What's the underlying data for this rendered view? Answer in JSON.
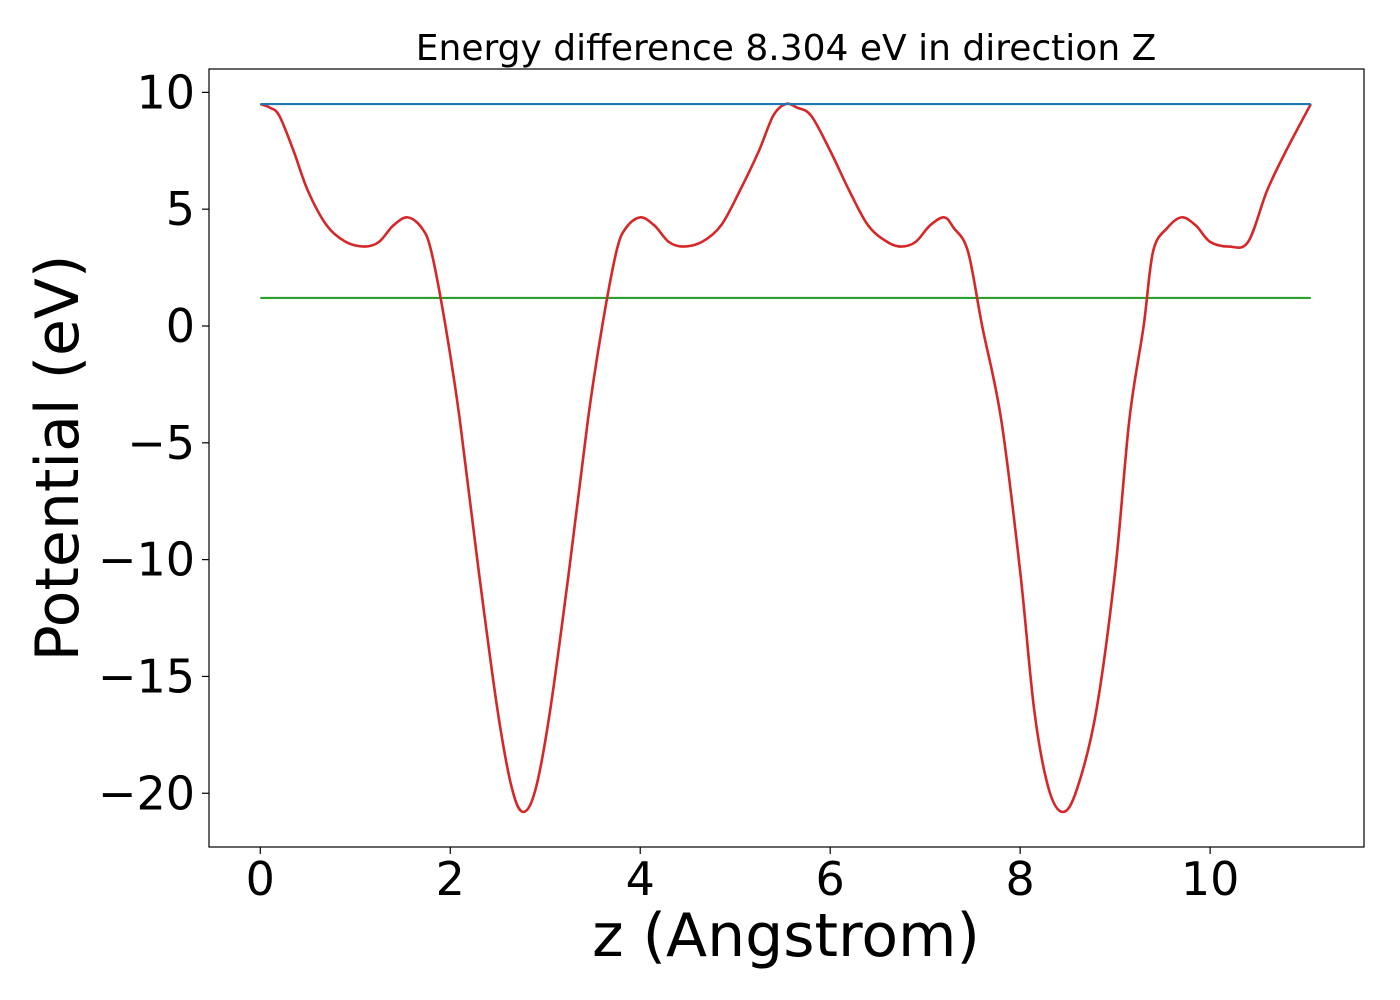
{
  "chart_data": {
    "type": "line",
    "title": "Energy difference 8.304 eV in direction Z",
    "xlabel": "z (Angstrom)",
    "ylabel": "Potential (eV)",
    "xlim": [
      -0.54,
      11.62
    ],
    "ylim": [
      -22.3,
      11.0
    ],
    "xticks": [
      0,
      2,
      4,
      6,
      8,
      10
    ],
    "xtick_labels": [
      "0",
      "2",
      "4",
      "6",
      "8",
      "10"
    ],
    "yticks": [
      10,
      5,
      0,
      -5,
      -10,
      -15,
      -20
    ],
    "ytick_labels": [
      "10",
      "5",
      "0",
      "−5",
      "−10",
      "−15",
      "−20"
    ],
    "grid": false,
    "legend": "none",
    "series": [
      {
        "color": "#d62728",
        "x": [
          0,
          0.1,
          0.2,
          0.35,
          0.5,
          0.7,
          0.9,
          1.1,
          1.25,
          1.4,
          1.55,
          1.7,
          1.8,
          1.95,
          2.1,
          2.3,
          2.5,
          2.65,
          2.77,
          2.9,
          3.05,
          3.25,
          3.45,
          3.6,
          3.75,
          3.85,
          4.0,
          4.15,
          4.3,
          4.45,
          4.65,
          4.85,
          5.05,
          5.25,
          5.4,
          5.53,
          5.65,
          5.8,
          6.0,
          6.2,
          6.4,
          6.6,
          6.75,
          6.9,
          7.05,
          7.2,
          7.3,
          7.45,
          7.6,
          7.8,
          8.0,
          8.15,
          8.3,
          8.45,
          8.6,
          8.8,
          9.0,
          9.15,
          9.3,
          9.4,
          9.55,
          9.7,
          9.85,
          10.0,
          10.2,
          10.4,
          10.6,
          10.8,
          11.06
        ],
        "values": [
          9.5,
          9.35,
          9.0,
          7.5,
          5.8,
          4.3,
          3.6,
          3.4,
          3.6,
          4.3,
          4.65,
          4.2,
          3.2,
          0.0,
          -4.0,
          -10.5,
          -16.5,
          -19.8,
          -20.8,
          -19.8,
          -16.5,
          -10.5,
          -4.0,
          0.0,
          3.2,
          4.2,
          4.65,
          4.3,
          3.6,
          3.4,
          3.6,
          4.3,
          5.8,
          7.5,
          9.0,
          9.5,
          9.35,
          9.0,
          7.5,
          5.8,
          4.3,
          3.6,
          3.4,
          3.6,
          4.3,
          4.65,
          4.2,
          3.2,
          0.0,
          -4.0,
          -10.5,
          -16.5,
          -19.8,
          -20.8,
          -19.8,
          -16.5,
          -10.5,
          -4.0,
          0.0,
          3.2,
          4.2,
          4.65,
          4.3,
          3.6,
          3.4,
          3.6,
          5.8,
          7.5,
          9.5
        ]
      },
      {
        "color": "#1f77b4",
        "x": [
          0,
          11.06
        ],
        "values": [
          9.5,
          9.5
        ]
      },
      {
        "color": "#2ca02c",
        "x": [
          0,
          11.06
        ],
        "values": [
          1.2,
          1.2
        ]
      }
    ]
  }
}
